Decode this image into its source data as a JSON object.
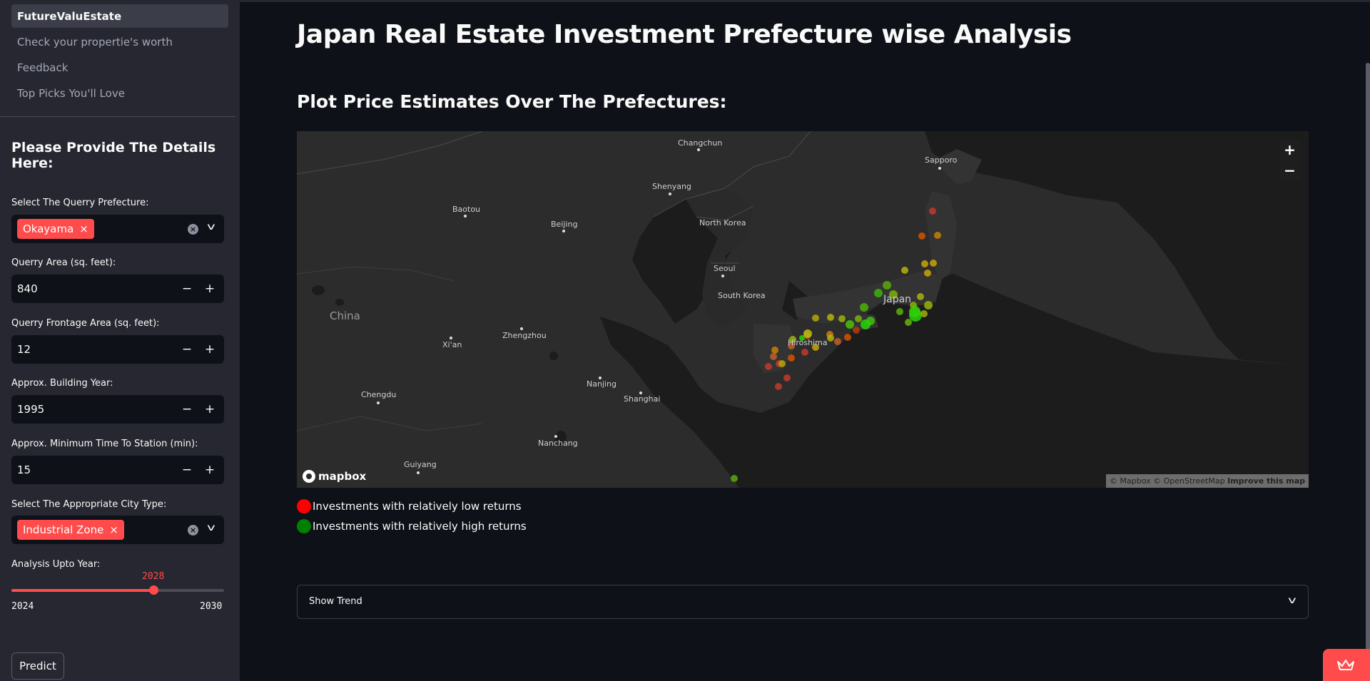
{
  "sidebar": {
    "nav": [
      "FutureValuEstate",
      "Check your propertie's worth",
      "Feedback",
      "Top Picks You'll Love"
    ],
    "heading": "Please Provide The Details Here:",
    "prefecture": {
      "label": "Select The Querry Prefecture:",
      "selected": "Okayama"
    },
    "area": {
      "label": "Querry Area (sq. feet):",
      "value": "840"
    },
    "frontage": {
      "label": "Querry Frontage Area (sq. feet):",
      "value": "12"
    },
    "building_year": {
      "label": "Approx. Building Year:",
      "value": "1995"
    },
    "station_time": {
      "label": "Approx. Minimum Time To Station (min):",
      "value": "15"
    },
    "city_type": {
      "label": "Select The Appropriate City Type:",
      "selected": "Industrial Zone"
    },
    "analysis_year": {
      "label": "Analysis Upto Year:",
      "min": 2024,
      "max": 2030,
      "value": 2028,
      "min_label": "2024",
      "max_label": "2030",
      "value_label": "2028"
    },
    "predict_label": "Predict"
  },
  "main": {
    "title": "Japan Real Estate Investment Prefecture wise Analysis",
    "subtitle": "Plot Price Estimates Over The Prefectures:",
    "map": {
      "labels": [
        "Changchun",
        "Sapporo",
        "Shenyang",
        "Baotou",
        "Beijing",
        "North Korea",
        "Seoul",
        "South Korea",
        "Japan",
        "Zhengzhou",
        "Xi'an",
        "Hiroshima",
        "Nanjing",
        "Shanghai",
        "Chengdu",
        "Nanchang",
        "Guiyang"
      ],
      "country_label": "China",
      "zoom_in": "+",
      "zoom_out": "−",
      "logo": "mapbox",
      "attribution": "© Mapbox © OpenStreetMap",
      "improve": "Improve this map"
    },
    "legend": [
      {
        "color": "#ff0000",
        "label": "Investments with relatively low returns"
      },
      {
        "color": "#008000",
        "label": "Investments with relatively high returns"
      }
    ],
    "expander_label": "Show Trend"
  }
}
